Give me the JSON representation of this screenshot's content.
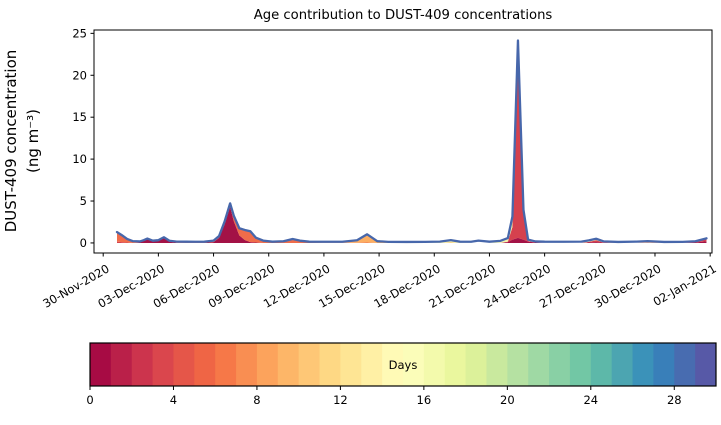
{
  "chart_data": {
    "type": "area",
    "stacked": true,
    "title": "Age contribution to DUST-409 concentrations",
    "ylabel_line1": "DUST-409 concentration",
    "ylabel_line2": "(ng m⁻³)",
    "x_units": "days after 30-Nov-2020",
    "grid": false,
    "xlim": [
      -0.5,
      33.1
    ],
    "ylim": [
      -1.2,
      25.4
    ],
    "y_ticks": [
      0,
      5,
      10,
      15,
      20,
      25
    ],
    "x_ticks": {
      "days": [
        0,
        3,
        6,
        9,
        12,
        15,
        18,
        21,
        24,
        27,
        30,
        33
      ],
      "labels": [
        "30-Nov-2020",
        "03-Dec-2020",
        "06-Dec-2020",
        "09-Dec-2020",
        "12-Dec-2020",
        "15-Dec-2020",
        "18-Dec-2020",
        "21-Dec-2020",
        "24-Dec-2020",
        "27-Dec-2020",
        "30-Dec-2020",
        "02-Jan-2021"
      ]
    },
    "x": [
      0.75,
      1.0,
      1.3,
      1.6,
      2.0,
      2.2,
      2.4,
      2.7,
      3.0,
      3.3,
      3.6,
      4.0,
      4.5,
      5.0,
      5.5,
      6.0,
      6.3,
      6.6,
      6.9,
      7.1,
      7.4,
      7.7,
      8.0,
      8.3,
      8.7,
      9.2,
      9.8,
      10.3,
      10.7,
      11.2,
      12.0,
      13.0,
      13.8,
      14.35,
      14.9,
      15.5,
      16.5,
      17.5,
      18.3,
      18.9,
      19.4,
      20.0,
      20.4,
      21.0,
      21.6,
      22.0,
      22.25,
      22.55,
      22.85,
      23.1,
      23.5,
      24.0,
      25.0,
      26.0,
      26.4,
      26.8,
      27.2,
      28.0,
      29.0,
      29.6,
      30.5,
      31.5,
      32.2,
      32.8
    ],
    "series": [
      {
        "name": "age-0-2-days",
        "color": "#a31246",
        "values": [
          0,
          0,
          0,
          0,
          0.05,
          0.25,
          0.45,
          0.15,
          0.25,
          0.6,
          0.15,
          0.02,
          0.02,
          0.02,
          0.02,
          0.1,
          0.6,
          2.2,
          4.3,
          2.6,
          0.9,
          0.35,
          0.1,
          0.05,
          0,
          0,
          0,
          0,
          0,
          0,
          0,
          0,
          0,
          0,
          0,
          0,
          0,
          0,
          0,
          0,
          0,
          0,
          0,
          0,
          0,
          0.1,
          0.4,
          0.6,
          0.4,
          0.15,
          0.05,
          0,
          0,
          0,
          0.05,
          0.1,
          0.02,
          0,
          0,
          0.02,
          0,
          0,
          0.05,
          0.2
        ]
      },
      {
        "name": "age-3-5-days",
        "color": "#d5414e",
        "values": [
          0.15,
          0.1,
          0.05,
          0,
          0,
          0,
          0,
          0,
          0,
          0,
          0,
          0,
          0,
          0,
          0,
          0,
          0,
          0,
          0,
          0,
          0,
          0,
          0,
          0,
          0,
          0,
          0,
          0,
          0,
          0,
          0,
          0,
          0,
          0,
          0,
          0,
          0,
          0,
          0,
          0,
          0,
          0,
          0,
          0,
          0,
          0.05,
          1.5,
          22.0,
          3.2,
          0.1,
          0,
          0,
          0,
          0,
          0.08,
          0.2,
          0.05,
          0,
          0,
          0,
          0,
          0,
          0.05,
          0.25
        ]
      },
      {
        "name": "age-6-8-days",
        "color": "#ef6c4a",
        "values": [
          1.05,
          0.75,
          0.35,
          0.12,
          0.05,
          0.02,
          0.02,
          0.05,
          0.02,
          0.02,
          0.05,
          0.05,
          0.04,
          0.03,
          0.04,
          0.1,
          0.15,
          0.25,
          0.35,
          0.55,
          0.75,
          1.1,
          1.2,
          0.5,
          0.2,
          0.05,
          0.1,
          0.35,
          0.18,
          0.05,
          0.02,
          0.02,
          0.02,
          0.05,
          0,
          0,
          0,
          0,
          0,
          0,
          0,
          0,
          0,
          0,
          0,
          0,
          0,
          0,
          0,
          0,
          0,
          0,
          0,
          0,
          0,
          0,
          0,
          0,
          0,
          0,
          0,
          0,
          0,
          0
        ]
      },
      {
        "name": "age-9-12-days",
        "color": "#fcae62",
        "values": [
          0,
          0,
          0,
          0,
          0,
          0,
          0,
          0,
          0,
          0,
          0,
          0,
          0,
          0,
          0,
          0,
          0,
          0,
          0,
          0,
          0,
          0,
          0,
          0,
          0,
          0,
          0,
          0.05,
          0,
          0,
          0,
          0,
          0.22,
          0.9,
          0.12,
          0.02,
          0,
          0,
          0,
          0.05,
          0,
          0,
          0,
          0,
          0,
          0,
          0,
          0,
          0,
          0,
          0,
          0,
          0,
          0,
          0,
          0.05,
          0,
          0,
          0,
          0.05,
          0,
          0,
          0,
          0
        ]
      },
      {
        "name": "age-13-16-days",
        "color": "#f4f4a9",
        "values": [
          0,
          0,
          0,
          0,
          0,
          0,
          0,
          0,
          0,
          0,
          0,
          0,
          0,
          0,
          0,
          0,
          0,
          0.05,
          0,
          0,
          0,
          0,
          0,
          0,
          0,
          0,
          0,
          0,
          0,
          0,
          0,
          0,
          0,
          0,
          0,
          0,
          0,
          0,
          0.05,
          0.15,
          0.02,
          0,
          0,
          0,
          0.1,
          0.3,
          1.1,
          1.2,
          0.25,
          0.05,
          0,
          0,
          0,
          0,
          0.08,
          0.08,
          0.03,
          0,
          0,
          0,
          0,
          0,
          0,
          0
        ]
      }
    ],
    "total": {
      "name": "total-concentration",
      "color": "#4767ab",
      "values": [
        1.3,
        0.95,
        0.48,
        0.22,
        0.18,
        0.33,
        0.52,
        0.27,
        0.33,
        0.68,
        0.26,
        0.16,
        0.15,
        0.14,
        0.15,
        0.28,
        0.82,
        2.55,
        4.72,
        3.25,
        1.75,
        1.55,
        1.4,
        0.63,
        0.28,
        0.15,
        0.2,
        0.47,
        0.27,
        0.15,
        0.14,
        0.14,
        0.32,
        1.03,
        0.21,
        0.13,
        0.12,
        0.13,
        0.16,
        0.33,
        0.15,
        0.14,
        0.28,
        0.15,
        0.25,
        0.58,
        3.15,
        24.15,
        3.95,
        0.4,
        0.18,
        0.15,
        0.14,
        0.16,
        0.3,
        0.5,
        0.19,
        0.12,
        0.16,
        0.22,
        0.12,
        0.13,
        0.2,
        0.55
      ]
    },
    "colorbar": {
      "label": "Days",
      "range": [
        0,
        30
      ],
      "n_segments": 30,
      "ticks": [
        0,
        4,
        8,
        12,
        16,
        20,
        24,
        28
      ],
      "colormap": "Spectral",
      "colormap_stops": [
        "#9e0142",
        "#d53e4f",
        "#f46d43",
        "#fdae61",
        "#fee08b",
        "#ffffbf",
        "#e6f598",
        "#abdda4",
        "#66c2a5",
        "#3288bd",
        "#5e4fa2"
      ]
    }
  }
}
